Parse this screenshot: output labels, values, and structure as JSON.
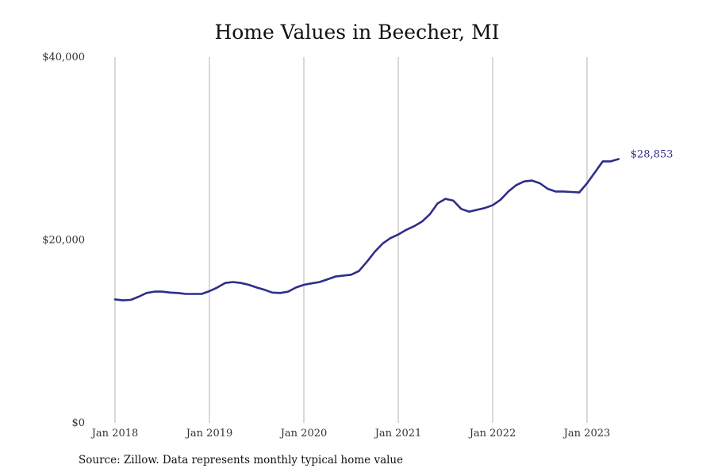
{
  "chart_data": {
    "type": "line",
    "title": "Home Values in Beecher, MI",
    "xlabel": "",
    "ylabel": "",
    "ylim": [
      0,
      40000
    ],
    "yticks": [
      {
        "value": 0,
        "label": "$0"
      },
      {
        "value": 20000,
        "label": "$20,000"
      },
      {
        "value": 40000,
        "label": "$40,000"
      }
    ],
    "xticks": [
      {
        "value": "2018-01",
        "label": "Jan 2018"
      },
      {
        "value": "2019-01",
        "label": "Jan 2019"
      },
      {
        "value": "2020-01",
        "label": "Jan 2020"
      },
      {
        "value": "2021-01",
        "label": "Jan 2021"
      },
      {
        "value": "2022-01",
        "label": "Jan 2022"
      },
      {
        "value": "2023-01",
        "label": "Jan 2023"
      }
    ],
    "x_grid": true,
    "y_grid": false,
    "line_color": "#2e2e8a",
    "series": [
      {
        "name": "",
        "x": [
          "2018-01",
          "2018-02",
          "2018-03",
          "2018-04",
          "2018-05",
          "2018-06",
          "2018-07",
          "2018-08",
          "2018-09",
          "2018-10",
          "2018-11",
          "2018-12",
          "2019-01",
          "2019-02",
          "2019-03",
          "2019-04",
          "2019-05",
          "2019-06",
          "2019-07",
          "2019-08",
          "2019-09",
          "2019-10",
          "2019-11",
          "2019-12",
          "2020-01",
          "2020-02",
          "2020-03",
          "2020-04",
          "2020-05",
          "2020-06",
          "2020-07",
          "2020-08",
          "2020-09",
          "2020-10",
          "2020-11",
          "2020-12",
          "2021-01",
          "2021-02",
          "2021-03",
          "2021-04",
          "2021-05",
          "2021-06",
          "2021-07",
          "2021-08",
          "2021-09",
          "2021-10",
          "2021-11",
          "2021-12",
          "2022-01",
          "2022-02",
          "2022-03",
          "2022-04",
          "2022-05",
          "2022-06",
          "2022-07",
          "2022-08",
          "2022-09",
          "2022-10",
          "2022-11",
          "2022-12",
          "2023-01",
          "2023-02",
          "2023-03",
          "2023-04",
          "2023-05"
        ],
        "values": [
          13500,
          13400,
          13450,
          13800,
          14200,
          14350,
          14350,
          14250,
          14200,
          14100,
          14100,
          14100,
          14400,
          14800,
          15300,
          15400,
          15300,
          15100,
          14800,
          14550,
          14250,
          14200,
          14350,
          14800,
          15100,
          15250,
          15400,
          15700,
          16000,
          16100,
          16200,
          16600,
          17600,
          18700,
          19600,
          20200,
          20600,
          21100,
          21500,
          22000,
          22800,
          24000,
          24500,
          24300,
          23400,
          23100,
          23300,
          23500,
          23800,
          24400,
          25300,
          26000,
          26400,
          26500,
          26200,
          25600,
          25300,
          25300,
          25250,
          25200,
          26200,
          27400,
          28600,
          28600,
          28853
        ]
      }
    ],
    "end_label": "$28,853"
  },
  "source_note": "Source: Zillow. Data represents monthly typical home value"
}
